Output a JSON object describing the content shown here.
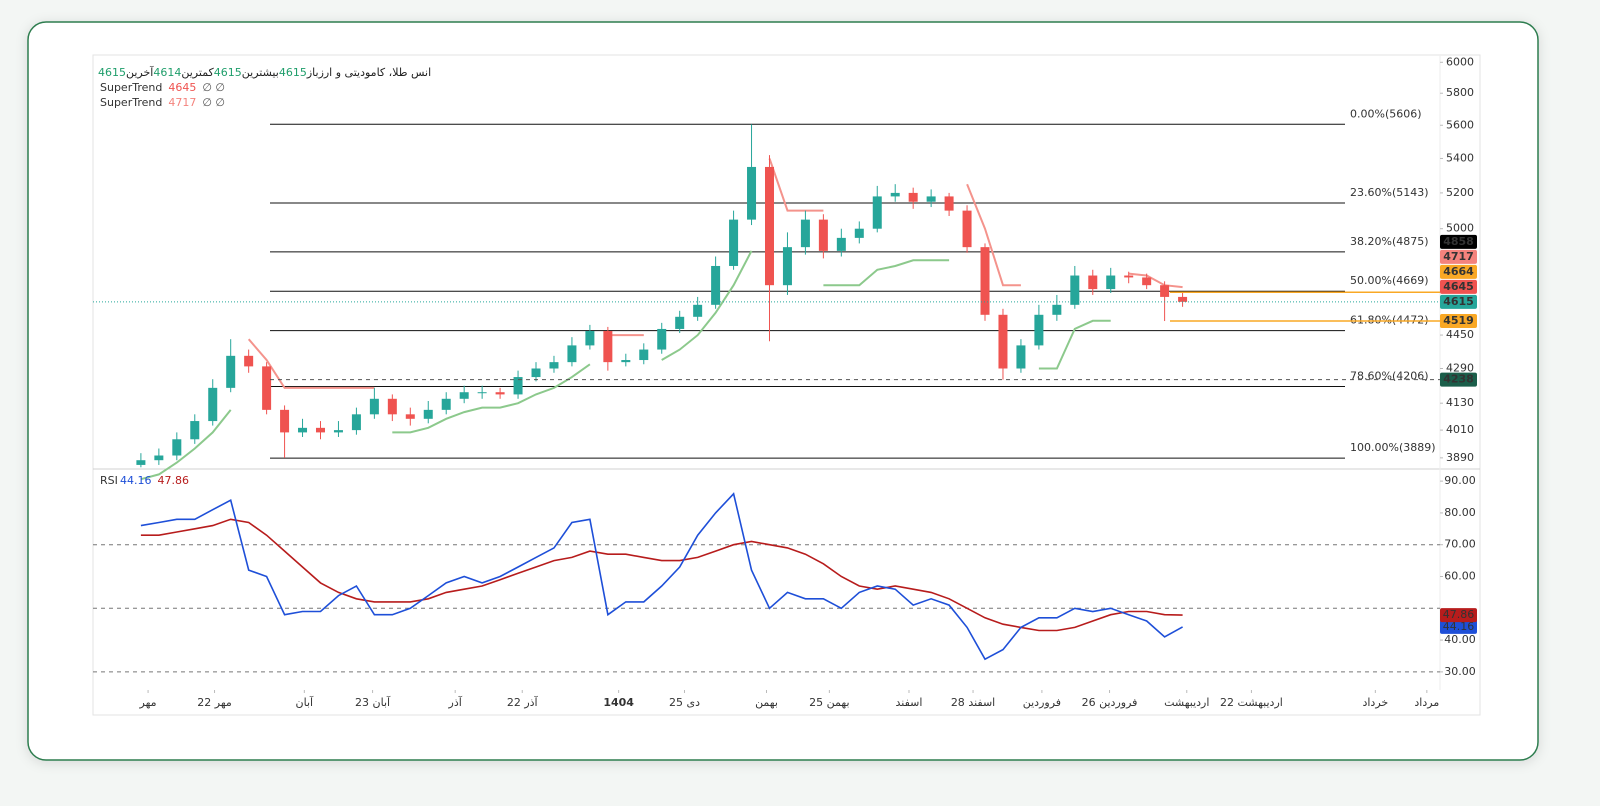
{
  "chart_data": [
    {
      "type": "candlestick",
      "title": "انس طلا، کامودیتی و ارز",
      "ohlc_legend": [
        {
          "label": "آخرین",
          "value": 4615
        },
        {
          "label": "کمترین",
          "value": 4614
        },
        {
          "label": "بیشترین",
          "value": 4615
        },
        {
          "label": "باز",
          "value": 4615
        }
      ],
      "log_scale": true,
      "up_color": "#26a69a",
      "down_color": "#ef5350",
      "xlim": [
        0,
        225
      ],
      "x": [
        8,
        11,
        14,
        17,
        20,
        23,
        26,
        29,
        32,
        35,
        38,
        41,
        44,
        47,
        50,
        53,
        56,
        59,
        62,
        65,
        68,
        71,
        74,
        77,
        80,
        83,
        86,
        89,
        92,
        95,
        98,
        101,
        104,
        107,
        110,
        113,
        116,
        119,
        122,
        125,
        128,
        131,
        134,
        137,
        140,
        143,
        146,
        149,
        152,
        155,
        158,
        161,
        164,
        167,
        170,
        173,
        176,
        179,
        182
      ],
      "open": [
        3860,
        3880,
        3900,
        3970,
        4050,
        4200,
        4350,
        4300,
        4100,
        4000,
        4020,
        4000,
        4010,
        4080,
        4150,
        4080,
        4060,
        4100,
        4150,
        4180,
        4180,
        4170,
        4250,
        4290,
        4320,
        4400,
        4470,
        4320,
        4330,
        4380,
        4480,
        4540,
        4600,
        4800,
        5050,
        5350,
        4700,
        4900,
        5050,
        4880,
        4950,
        5000,
        5180,
        5200,
        5150,
        5180,
        5100,
        4900,
        4550,
        4290,
        4400,
        4550,
        4600,
        4750,
        4680,
        4750,
        4740,
        4700,
        4640
      ],
      "high": [
        3910,
        3930,
        4000,
        4080,
        4240,
        4430,
        4380,
        4320,
        4120,
        4060,
        4050,
        4050,
        4110,
        4200,
        4170,
        4110,
        4140,
        4180,
        4210,
        4210,
        4200,
        4280,
        4320,
        4350,
        4440,
        4500,
        4490,
        4360,
        4410,
        4510,
        4570,
        4640,
        4850,
        5100,
        5606,
        5420,
        4980,
        5100,
        5080,
        5000,
        5040,
        5240,
        5250,
        5230,
        5220,
        5200,
        5130,
        4920,
        4580,
        4430,
        4600,
        4650,
        4800,
        4780,
        4790,
        4770,
        4760,
        4720,
        4660
      ],
      "low": [
        3850,
        3860,
        3880,
        3950,
        4030,
        4180,
        4270,
        4080,
        3890,
        3980,
        3970,
        3980,
        3990,
        4060,
        4050,
        4030,
        4040,
        4080,
        4130,
        4150,
        4150,
        4150,
        4230,
        4270,
        4300,
        4380,
        4280,
        4300,
        4310,
        4360,
        4460,
        4520,
        4580,
        4780,
        5020,
        4420,
        4650,
        4860,
        4840,
        4850,
        4920,
        4980,
        5150,
        5110,
        5120,
        5070,
        4870,
        4520,
        4238,
        4270,
        4380,
        4520,
        4580,
        4650,
        4660,
        4710,
        4680,
        4519,
        4590
      ],
      "close": [
        3880,
        3900,
        3970,
        4050,
        4200,
        4350,
        4300,
        4100,
        4000,
        4020,
        4000,
        4010,
        4080,
        4150,
        4080,
        4060,
        4100,
        4150,
        4180,
        4180,
        4170,
        4250,
        4290,
        4320,
        4400,
        4470,
        4320,
        4330,
        4380,
        4480,
        4540,
        4600,
        4800,
        5050,
        5350,
        4700,
        4900,
        5050,
        4880,
        4950,
        5000,
        5180,
        5200,
        5150,
        5180,
        5100,
        4900,
        4550,
        4290,
        4400,
        4550,
        4600,
        4750,
        4680,
        4750,
        4740,
        4700,
        4640,
        4615
      ],
      "supertrend": [
        {
          "name": "SuperTrend",
          "value": 4645,
          "params": "∅ ∅",
          "legend_color": "#ef5350",
          "color": "#8cc98c",
          "color_down": "#f4938c",
          "values": [
            3800,
            3820,
            3870,
            3930,
            4000,
            4100,
            null,
            null,
            null,
            null,
            null,
            null,
            null,
            null,
            4000,
            4000,
            4020,
            4060,
            4090,
            4110,
            4110,
            4130,
            4170,
            4200,
            4250,
            4310,
            null,
            null,
            null,
            4330,
            4380,
            4450,
            4560,
            4700,
            4880,
            null,
            null,
            null,
            4700,
            4700,
            4700,
            4780,
            4800,
            4830,
            4830,
            4830,
            null,
            null,
            null,
            null,
            4290,
            4290,
            4480,
            4520,
            4520,
            null,
            null,
            null,
            null
          ],
          "values_down": [
            null,
            null,
            null,
            null,
            null,
            null,
            4430,
            4330,
            4200,
            4200,
            4200,
            4200,
            4200,
            4200,
            null,
            null,
            null,
            null,
            null,
            null,
            null,
            null,
            null,
            null,
            null,
            null,
            4450,
            4450,
            4450,
            null,
            null,
            null,
            null,
            null,
            null,
            5400,
            5100,
            5100,
            5100,
            null,
            null,
            null,
            null,
            null,
            null,
            null,
            5250,
            5000,
            4700,
            4700,
            null,
            null,
            null,
            null,
            null,
            4760,
            4750,
            4700,
            4690
          ]
        },
        {
          "name": "SuperTrend",
          "value": 4717,
          "params": "∅ ∅",
          "legend_color": "#f4837d"
        }
      ],
      "ylim": [
        3847,
        6048
      ],
      "yticks": [
        6000,
        5800,
        5600,
        5400,
        5200,
        5000,
        4450,
        4290,
        4130,
        4010,
        3890
      ],
      "fib_levels": [
        {
          "label": "0.00%(5606)",
          "value": 5606
        },
        {
          "label": "23.60%(5143)",
          "value": 5143
        },
        {
          "label": "38.20%(4875)",
          "value": 4875
        },
        {
          "label": "50.00%(4669)",
          "value": 4669
        },
        {
          "label": "61.80%(4472)",
          "value": 4472
        },
        {
          "label": "78.60%(4206)",
          "value": 4206
        },
        {
          "label": "100.00%(3889)",
          "value": 3889
        }
      ],
      "price_badges": [
        {
          "value": 4858,
          "color": "#000000"
        },
        {
          "value": 4717,
          "color": "#f4837d"
        },
        {
          "value": 4664,
          "color": "#f9a825",
          "line": "solid"
        },
        {
          "value": 4645,
          "color": "#ef5350"
        },
        {
          "value": 4615,
          "color": "#26a69a",
          "line": "dotted"
        },
        {
          "value": 4519,
          "color": "#f9a825",
          "line": "solid"
        },
        {
          "value": 4238,
          "color": "#1b5e4a",
          "line": "dashed"
        }
      ],
      "xticks": [
        {
          "value": 9.2,
          "label": "مهر"
        },
        {
          "value": 20.3,
          "label": "22 مهر"
        },
        {
          "value": 35.3,
          "label": "آبان"
        },
        {
          "value": 46.7,
          "label": "23 آبان"
        },
        {
          "value": 60.5,
          "label": "آذر"
        },
        {
          "value": 71.7,
          "label": "22 آذر"
        },
        {
          "value": 87.8,
          "label": "1404",
          "bold": true
        },
        {
          "value": 98.8,
          "label": "25 دی"
        },
        {
          "value": 112.5,
          "label": "بهمن"
        },
        {
          "value": 123,
          "label": "25 بهمن"
        },
        {
          "value": 136.3,
          "label": "اسفند"
        },
        {
          "value": 147,
          "label": "28 اسفند"
        },
        {
          "value": 158.5,
          "label": "فروردین"
        },
        {
          "value": 169.8,
          "label": "26 فروردین"
        },
        {
          "value": 182.7,
          "label": "اردیبهشت"
        },
        {
          "value": 193.5,
          "label": "22 اردیبهشت"
        },
        {
          "value": 214.2,
          "label": "خرداد"
        },
        {
          "value": 222.8,
          "label": "مرداد"
        }
      ]
    },
    {
      "type": "line",
      "title": "RSI",
      "series": [
        {
          "color": "#1e4fd8",
          "values": [
            76,
            77,
            78,
            78,
            81,
            84,
            62,
            60,
            48,
            49,
            49,
            54,
            57,
            48,
            48,
            50,
            54,
            58,
            60,
            58,
            60,
            63,
            66,
            69,
            77,
            78,
            48,
            52,
            52,
            57,
            63,
            73,
            80,
            86,
            62,
            50,
            55,
            53,
            53,
            50,
            55,
            57,
            56,
            51,
            53,
            51,
            44,
            34,
            37,
            44,
            47,
            47,
            50,
            49,
            50,
            48,
            46,
            41,
            44.16
          ]
        },
        {
          "color": "#b71c1c",
          "values": [
            73,
            73,
            74,
            75,
            76,
            78,
            77,
            73,
            68,
            63,
            58,
            55,
            53,
            52,
            52,
            52,
            53,
            55,
            56,
            57,
            59,
            61,
            63,
            65,
            66,
            68,
            67,
            67,
            66,
            65,
            65,
            66,
            68,
            70,
            71,
            70,
            69,
            67,
            64,
            60,
            57,
            56,
            57,
            56,
            55,
            53,
            50,
            47,
            45,
            44,
            43,
            43,
            44,
            46,
            48,
            49,
            49,
            48,
            47.86
          ]
        }
      ],
      "ylim": [
        24.3,
        93.5
      ],
      "yticks": [
        {
          "value": 90,
          "label": "90.00"
        },
        {
          "value": 80,
          "label": "80.00"
        },
        {
          "value": 70,
          "label": "70.00"
        },
        {
          "value": 60,
          "label": "60.00"
        },
        {
          "value": 40,
          "label": "40.00"
        },
        {
          "value": 30,
          "label": "30.00"
        }
      ],
      "hlines": [
        70,
        50,
        30
      ]
    }
  ]
}
